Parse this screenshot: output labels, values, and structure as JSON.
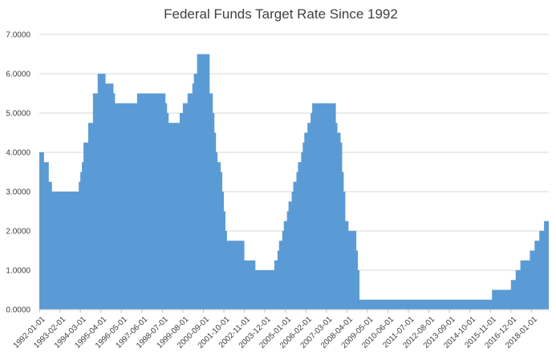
{
  "chart_data": {
    "type": "area",
    "title": "Federal Funds Target Rate Since 1992",
    "xlabel": "",
    "ylabel": "",
    "ylim": [
      0,
      7
    ],
    "xlim": [
      "1992-01-01",
      "2018-12-01"
    ],
    "grid": true,
    "legend": "none",
    "color": "#5b9bd5",
    "y_ticks": [
      "0.0000",
      "1.0000",
      "2.0000",
      "3.0000",
      "4.0000",
      "5.0000",
      "6.0000",
      "7.0000"
    ],
    "x_ticks": [
      "1992-01-01",
      "1993-02-01",
      "1994-03-01",
      "1995-04-01",
      "1996-05-01",
      "1997-06-01",
      "1998-07-01",
      "1999-08-01",
      "2000-09-01",
      "2001-10-01",
      "2002-11-01",
      "2003-12-01",
      "2005-01-01",
      "2006-02-01",
      "2007-03-01",
      "2008-04-01",
      "2009-05-01",
      "2010-06-01",
      "2011-07-01",
      "2012-08-01",
      "2013-09-01",
      "2014-10-01",
      "2015-11-01",
      "2016-12-01",
      "2018-01-01"
    ],
    "series": [
      {
        "x": [
          "1992-01-01",
          "1992-04-01",
          "1992-07-01",
          "1992-09-01",
          "1994-02-01",
          "1994-03-01",
          "1994-04-01",
          "1994-05-01",
          "1994-08-01",
          "1994-11-01",
          "1995-02-01",
          "1995-07-01",
          "1995-12-01",
          "1996-01-01",
          "1997-03-01",
          "1998-09-01",
          "1998-10-01",
          "1998-11-01",
          "1999-06-01",
          "1999-08-01",
          "1999-11-01",
          "2000-02-01",
          "2000-03-01",
          "2000-05-01",
          "2001-01-01",
          "2001-02-01",
          "2001-03-01",
          "2001-04-01",
          "2001-05-01",
          "2001-06-01",
          "2001-08-01",
          "2001-09-01",
          "2001-10-01",
          "2001-11-01",
          "2001-12-01",
          "2002-11-01",
          "2003-06-01",
          "2004-06-01",
          "2004-08-01",
          "2004-09-01",
          "2004-11-01",
          "2004-12-01",
          "2005-02-01",
          "2005-03-01",
          "2005-05-01",
          "2005-06-01",
          "2005-08-01",
          "2005-09-01",
          "2005-11-01",
          "2005-12-01",
          "2006-01-01",
          "2006-03-01",
          "2006-05-01",
          "2006-06-01",
          "2007-09-01",
          "2007-10-01",
          "2007-12-01",
          "2008-01-01",
          "2008-02-01",
          "2008-03-01",
          "2008-05-01",
          "2008-10-01",
          "2008-11-01",
          "2008-12-01",
          "2015-12-01",
          "2016-12-01",
          "2017-03-01",
          "2017-06-01",
          "2017-12-01",
          "2018-03-01",
          "2018-06-01",
          "2018-09-01",
          "2018-12-01"
        ],
        "values": [
          4.0,
          3.75,
          3.25,
          3.0,
          3.25,
          3.5,
          3.75,
          4.25,
          4.75,
          5.5,
          6.0,
          5.75,
          5.5,
          5.25,
          5.5,
          5.25,
          5.0,
          4.75,
          5.0,
          5.25,
          5.5,
          5.75,
          6.0,
          6.5,
          5.5,
          5.5,
          5.0,
          4.5,
          4.0,
          3.75,
          3.5,
          3.0,
          2.5,
          2.0,
          1.75,
          1.25,
          1.0,
          1.25,
          1.5,
          1.75,
          2.0,
          2.25,
          2.5,
          2.75,
          3.0,
          3.25,
          3.5,
          3.75,
          4.0,
          4.25,
          4.5,
          4.75,
          5.0,
          5.25,
          4.75,
          4.5,
          4.25,
          3.5,
          3.0,
          2.25,
          2.0,
          1.5,
          1.0,
          0.25,
          0.5,
          0.75,
          1.0,
          1.25,
          1.5,
          1.75,
          2.0,
          2.25,
          2.5
        ]
      }
    ]
  }
}
